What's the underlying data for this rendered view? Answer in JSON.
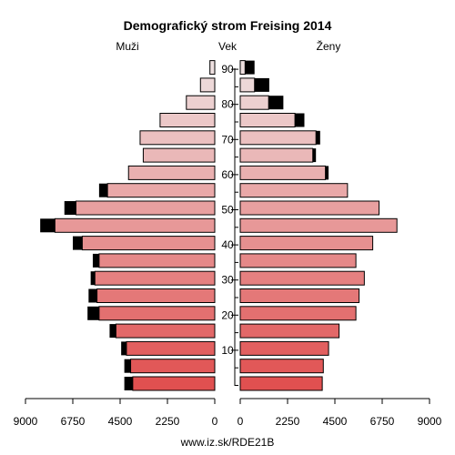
{
  "chart_data": {
    "type": "population-pyramid",
    "title": "Demografický strom Freising 2014",
    "left_label": "Muži",
    "center_label": "Vek",
    "right_label": "Ženy",
    "footer": "www.iz.sk/RDE21B",
    "x_ticks_left": [
      "9000",
      "6750",
      "4500",
      "2250",
      "0"
    ],
    "x_ticks_right": [
      "0",
      "2250",
      "4500",
      "6750",
      "9000"
    ],
    "x_tick_values": [
      0,
      2250,
      4500,
      6750,
      9000
    ],
    "xlim": [
      0,
      9000
    ],
    "age_ticks": [
      "10",
      "20",
      "30",
      "40",
      "50",
      "60",
      "70",
      "80",
      "90"
    ],
    "age_groups": [
      "0-4",
      "5-9",
      "10-14",
      "15-19",
      "20-24",
      "25-29",
      "30-34",
      "35-39",
      "40-44",
      "45-49",
      "50-54",
      "55-59",
      "60-64",
      "65-69",
      "70-74",
      "75-79",
      "80-84",
      "85-89",
      "90+"
    ],
    "series": [
      {
        "name": "Muži",
        "values": [
          3900,
          4000,
          4200,
          4700,
          5500,
          5600,
          5700,
          5500,
          6300,
          7600,
          6600,
          5100,
          4100,
          3400,
          3550,
          2600,
          1350,
          680,
          230
        ],
        "surplus": [
          400,
          300,
          250,
          300,
          550,
          400,
          200,
          300,
          450,
          700,
          550,
          400,
          0,
          0,
          0,
          0,
          0,
          0,
          0
        ]
      },
      {
        "name": "Ženy",
        "values": [
          3900,
          3950,
          4200,
          4700,
          5500,
          5650,
          5900,
          5500,
          6300,
          7450,
          6600,
          5100,
          4050,
          3450,
          3600,
          2600,
          1350,
          680,
          230
        ],
        "surplus": [
          0,
          0,
          0,
          0,
          0,
          0,
          0,
          0,
          0,
          0,
          0,
          0,
          150,
          150,
          200,
          450,
          700,
          700,
          450
        ]
      }
    ]
  }
}
